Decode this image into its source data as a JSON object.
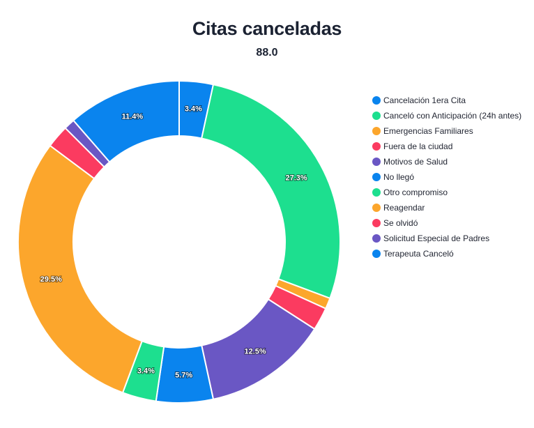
{
  "header": {
    "title": "Citas canceladas",
    "subtitle": "88.0"
  },
  "chart_data": {
    "type": "pie",
    "donut": true,
    "title": "Citas canceladas",
    "subtitle": "88.0",
    "legend_position": "right",
    "categories": [
      "Cancelación 1era Cita",
      "Canceló con Anticipación (24h antes)",
      "Emergencias Familiares",
      "Fuera de la ciudad",
      "Motivos de Salud",
      "No llegó",
      "Otro compromiso",
      "Reagendar",
      "Se olvidó",
      "Solicitud Especial de Padres",
      "Terapeuta Canceló"
    ],
    "values": [
      3.4,
      27.3,
      1.1,
      2.3,
      12.5,
      5.7,
      3.4,
      29.5,
      2.3,
      1.1,
      11.4
    ],
    "labels": [
      "3.4%",
      "27.3%",
      "",
      "",
      "12.5%",
      "5.7%",
      "3.4%",
      "29.5%",
      "",
      "",
      "11.4%"
    ],
    "colors": [
      "#0a84ee",
      "#1ddf8f",
      "#fca62c",
      "#fb3b60",
      "#6a57c4",
      "#0a84ee",
      "#1ddf8f",
      "#fca62c",
      "#fb3b60",
      "#6a57c4",
      "#0a84ee"
    ]
  }
}
